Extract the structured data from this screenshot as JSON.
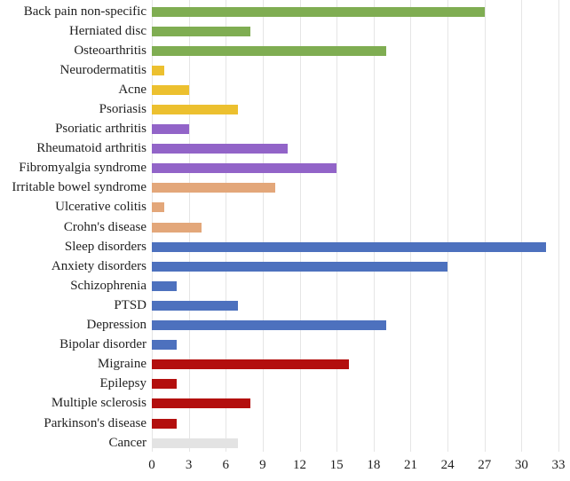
{
  "chart_data": {
    "type": "bar",
    "orientation": "horizontal",
    "title": "",
    "xlabel": "",
    "ylabel": "",
    "xlim": [
      0,
      33
    ],
    "xticks": [
      0,
      3,
      6,
      9,
      12,
      15,
      18,
      21,
      24,
      27,
      30,
      33
    ],
    "grid": "vertical",
    "legend": "none",
    "gridline_color": "#e5e5e5",
    "text_color": "#1f1f1f",
    "categories": [
      "Back pain non-specific",
      "Herniated disc",
      "Osteoarthritis",
      "Neurodermatitis",
      "Acne",
      "Psoriasis",
      "Psoriatic arthritis",
      "Rheumatoid arthritis",
      "Fibromyalgia syndrome",
      "Irritable bowel syndrome",
      "Ulcerative colitis",
      "Crohn's disease",
      "Sleep disorders",
      "Anxiety disorders",
      "Schizophrenia",
      "PTSD",
      "Depression",
      "Bipolar disorder",
      "Migraine",
      "Epilepsy",
      "Multiple sclerosis",
      "Parkinson's disease",
      "Cancer"
    ],
    "values": [
      27,
      8,
      19,
      1,
      3,
      7,
      3,
      11,
      15,
      10,
      1,
      4,
      32,
      24,
      2,
      7,
      19,
      2,
      16,
      2,
      8,
      2,
      7
    ],
    "bar_color_keys": [
      "green",
      "green",
      "green",
      "yellow",
      "yellow",
      "yellow",
      "purple",
      "purple",
      "purple",
      "tan",
      "tan",
      "tan",
      "blue",
      "blue",
      "blue",
      "blue",
      "blue",
      "blue",
      "red",
      "red",
      "red",
      "red",
      "gray"
    ],
    "palette": {
      "green": "#7fad52",
      "yellow": "#ecc02f",
      "purple": "#9264c8",
      "tan": "#e3a77a",
      "blue": "#4d71be",
      "red": "#b30f0e",
      "gray": "#e3e3e3"
    }
  }
}
